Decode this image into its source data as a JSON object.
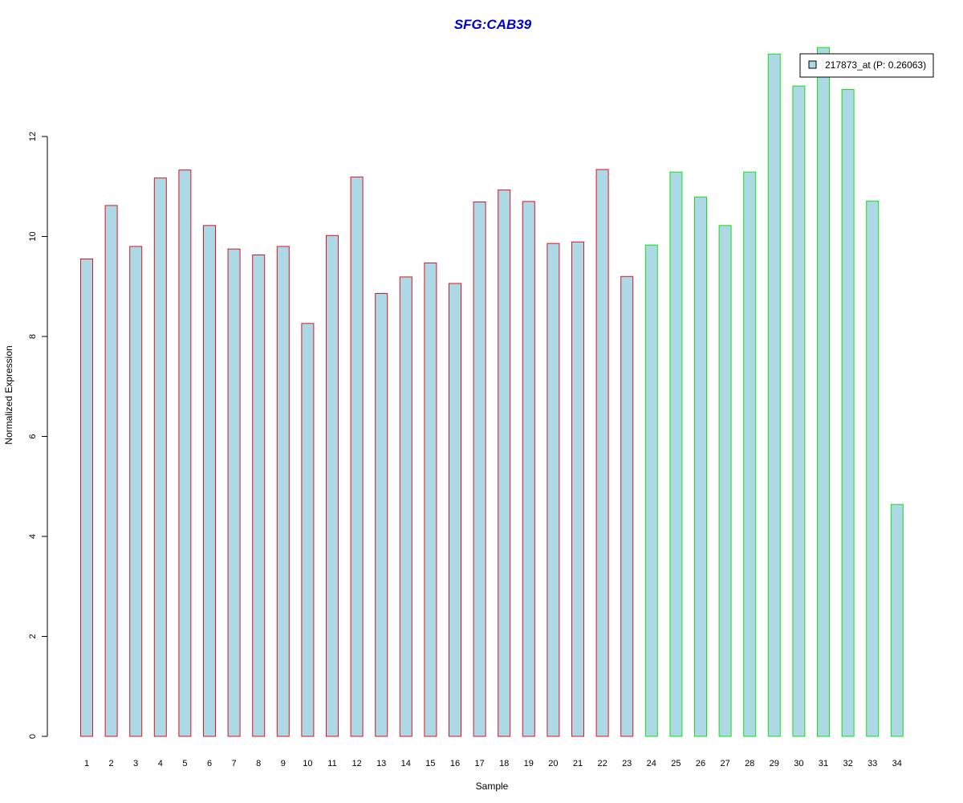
{
  "chart_data": {
    "type": "bar",
    "title": "SFG:CAB39",
    "xlabel": "Sample",
    "ylabel": "Normalized Expression",
    "ylim": [
      0,
      13.9
    ],
    "yticks": [
      0,
      2,
      4,
      6,
      8,
      10,
      12
    ],
    "grid": false,
    "legend": {
      "placement": "top-right",
      "entries": [
        {
          "label": "217873_at (P: 0.26063)",
          "color": "#add8e6"
        }
      ]
    },
    "categories": [
      "1",
      "2",
      "3",
      "4",
      "5",
      "6",
      "7",
      "8",
      "9",
      "10",
      "11",
      "12",
      "13",
      "14",
      "15",
      "16",
      "17",
      "18",
      "19",
      "20",
      "21",
      "22",
      "23",
      "24",
      "25",
      "26",
      "27",
      "28",
      "29",
      "30",
      "31",
      "32",
      "33",
      "34"
    ],
    "values": [
      9.55,
      10.62,
      9.8,
      11.17,
      11.33,
      10.22,
      9.75,
      9.63,
      9.8,
      8.26,
      10.02,
      11.19,
      8.86,
      9.19,
      9.47,
      9.06,
      10.69,
      10.93,
      10.7,
      9.86,
      9.89,
      11.34,
      9.2,
      9.83,
      11.29,
      10.79,
      10.22,
      11.29,
      13.65,
      13.01,
      13.78,
      12.94,
      10.71,
      4.64
    ],
    "groups": [
      {
        "samples": [
          1,
          23
        ],
        "border_color": "#e0141e"
      },
      {
        "samples": [
          24,
          34
        ],
        "border_color": "#14e014"
      }
    ],
    "fill_color": "#add8e6",
    "title_color": "#0000cc"
  }
}
